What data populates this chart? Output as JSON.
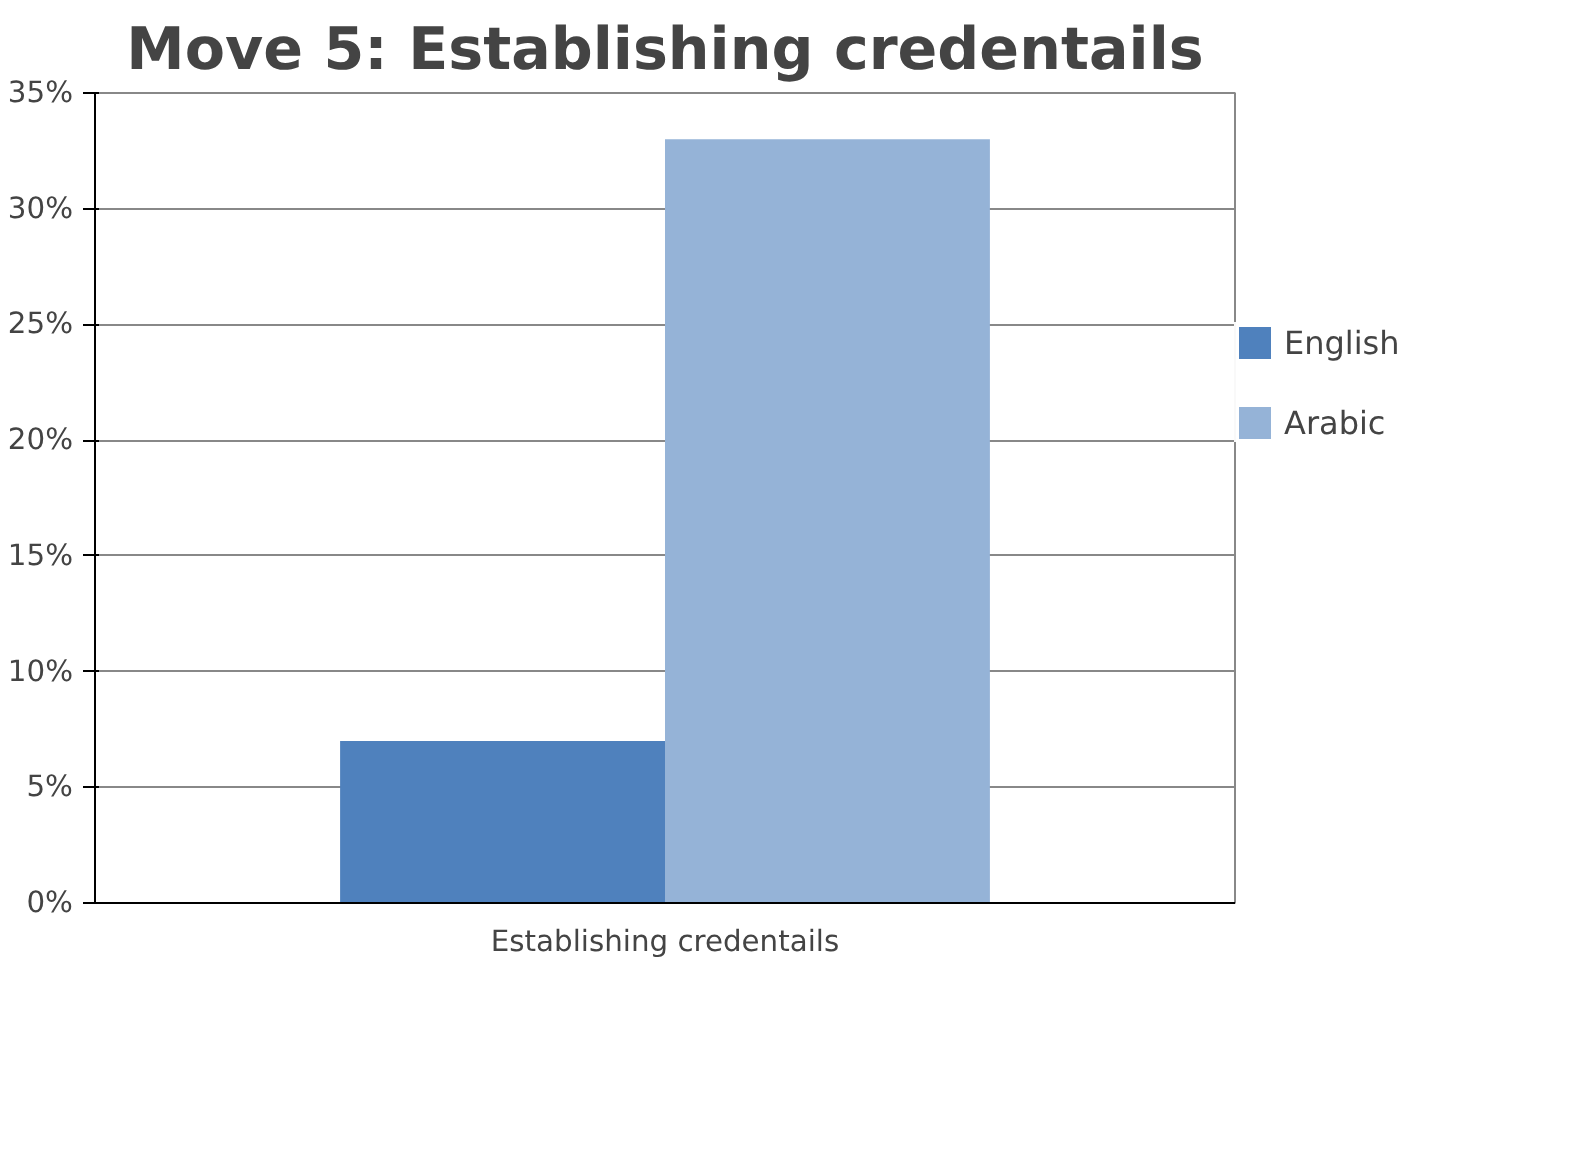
{
  "chart_data": {
    "type": "bar",
    "title": "Move 5: Establishing credentails",
    "categories": [
      "Establishing credentails"
    ],
    "series": [
      {
        "name": "English",
        "color": "#4f81bd",
        "values": [
          7
        ]
      },
      {
        "name": "Arabic",
        "color": "#95b3d7",
        "values": [
          33
        ]
      }
    ],
    "ylim": [
      0,
      35
    ],
    "yticks": [
      {
        "value": 0,
        "label": "0%"
      },
      {
        "value": 5,
        "label": "5%"
      },
      {
        "value": 10,
        "label": "10%"
      },
      {
        "value": 15,
        "label": "15%"
      },
      {
        "value": 20,
        "label": "20%"
      },
      {
        "value": 25,
        "label": "25%"
      },
      {
        "value": 30,
        "label": "30%"
      },
      {
        "value": 35,
        "label": "35%"
      }
    ],
    "grid": "y",
    "legend": "right"
  }
}
